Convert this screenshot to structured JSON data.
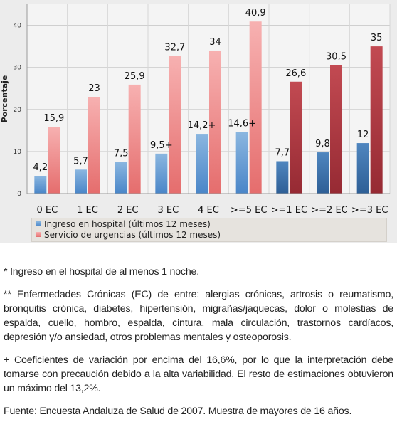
{
  "chart_data": {
    "type": "bar",
    "ylabel": "Porcentaje",
    "ylim": [
      0,
      45
    ],
    "yticks": [
      0,
      10,
      20,
      30,
      40
    ],
    "grid": true,
    "categories": [
      "0 EC",
      "1 EC",
      "2 EC",
      "3 EC",
      "4 EC",
      ">=5 EC",
      ">=1 EC",
      ">=2 EC",
      ">=3 EC"
    ],
    "series": [
      {
        "name": "Ingreso en hospital (últimos 12 meses)",
        "values": [
          4.2,
          5.7,
          7.5,
          9.5,
          14.2,
          14.6,
          7.7,
          9.8,
          12
        ],
        "labels": [
          "4,2",
          "5,7",
          "7,5",
          "9,5+",
          "14,2+",
          "14,6+",
          "7,7",
          "9,8",
          "12"
        ]
      },
      {
        "name": "Servicio de urgencias (últimos 12 meses)",
        "values": [
          15.9,
          23,
          25.9,
          32.7,
          34,
          40.9,
          26.6,
          30.5,
          35
        ],
        "labels": [
          "15,9",
          "23",
          "25,9",
          "32,7",
          "34",
          "40,9",
          "26,6",
          "30,5",
          "35"
        ]
      }
    ],
    "legend_position": "bottom",
    "colors": {
      "hospital_light": [
        "#8ab6e0",
        "#4a86c8"
      ],
      "hospital_dark": [
        "#4f86bf",
        "#2e5f96"
      ],
      "urgencias_light": [
        "#f7b1b1",
        "#e56d6d"
      ],
      "urgencias_dark": [
        "#c24a52",
        "#962a33"
      ]
    }
  },
  "notes": [
    "* Ingreso en el hospital de al menos 1 noche.",
    "** Enfermedades Crónicas (EC) de entre: alergias crónicas, artrosis o reumatismo, bronquitis crónica, diabetes, hipertensión, migrañas/jaquecas, dolor o molestias de espalda, cuello, hombro, espalda, cintura, mala circulación, trastornos cardíacos, depresión y/o ansiedad, otros problemas mentales y osteoporosis.",
    "+ Coeficientes de variación por encima del 16,6%, por lo que la interpretación debe tomarse con precaución debido a la alta variabilidad. El resto de estimaciones obtuvieron un máximo del 13,2%.",
    "Fuente: Encuesta Andaluza de Salud de 2007. Muestra de mayores de 16 años."
  ]
}
